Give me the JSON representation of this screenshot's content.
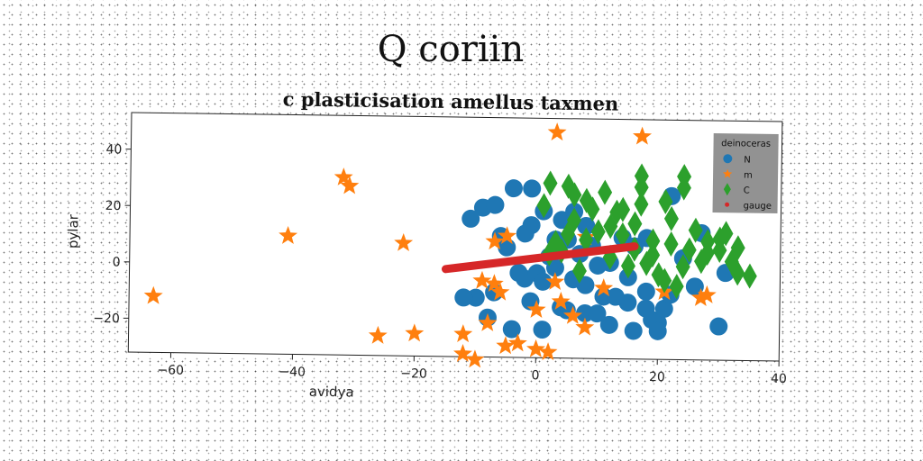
{
  "figure": {
    "title": "Q coriin",
    "subtitle": "c plasticisation amellus taxmen"
  },
  "chart_data": {
    "type": "scatter",
    "xlabel": "avidya",
    "ylabel": "pylar",
    "xlim": [
      -67,
      40
    ],
    "ylim": [
      -32,
      53
    ],
    "xticks": [
      -60,
      -40,
      -20,
      0,
      20,
      40
    ],
    "yticks": [
      -20,
      0,
      20,
      40
    ],
    "tick_labels_x": [
      "−60",
      "−40",
      "−20",
      "0",
      "20",
      "40"
    ],
    "tick_labels_y": [
      "−20",
      "0",
      "20",
      "40"
    ],
    "grid": false,
    "legend": {
      "title": "deinoceras",
      "placement": "top-right",
      "background": "#8c8c8c",
      "entries": [
        "N",
        "m",
        "C",
        "gauge"
      ]
    },
    "series": [
      {
        "name": "N",
        "marker": "circle",
        "color": "#1f77b4",
        "points": [
          [
            -11,
            17
          ],
          [
            -9,
            21
          ],
          [
            -7,
            22
          ],
          [
            -4,
            28
          ],
          [
            -1,
            28
          ],
          [
            1,
            20
          ],
          [
            4,
            17
          ],
          [
            3,
            10
          ],
          [
            -1,
            15
          ],
          [
            -2,
            12
          ],
          [
            6,
            20
          ],
          [
            8,
            15
          ],
          [
            5,
            10
          ],
          [
            7,
            5
          ],
          [
            3,
            0
          ],
          [
            0,
            -2
          ],
          [
            -2,
            -4
          ],
          [
            1,
            -5
          ],
          [
            6,
            -4
          ],
          [
            8,
            -6
          ],
          [
            11,
            -10
          ],
          [
            15,
            -12
          ],
          [
            -7,
            -9
          ],
          [
            -10,
            -11
          ],
          [
            -12,
            -11
          ],
          [
            -8,
            -18
          ],
          [
            -4,
            -22
          ],
          [
            1,
            -22
          ],
          [
            5,
            -15
          ],
          [
            8,
            -16
          ],
          [
            10,
            -16
          ],
          [
            12,
            -20
          ],
          [
            16,
            -22
          ],
          [
            18,
            -14
          ],
          [
            19,
            -18
          ],
          [
            20,
            -19
          ],
          [
            20,
            -22
          ],
          [
            21,
            -14
          ],
          [
            22,
            -9
          ],
          [
            26,
            -6
          ],
          [
            30,
            -20
          ],
          [
            31,
            -1
          ],
          [
            27,
            13
          ],
          [
            22,
            26
          ],
          [
            18,
            11
          ],
          [
            14,
            11
          ],
          [
            16,
            8
          ],
          [
            12,
            2
          ],
          [
            15,
            -3
          ],
          [
            -5,
            7
          ],
          [
            -3,
            -2
          ],
          [
            2,
            4
          ],
          [
            9,
            8
          ],
          [
            10,
            1
          ],
          [
            -6,
            11
          ],
          [
            24,
            4
          ],
          [
            18,
            -8
          ],
          [
            4,
            -14
          ],
          [
            13,
            -10
          ],
          [
            -1,
            -12
          ]
        ]
      },
      {
        "name": "m",
        "marker": "star",
        "color": "#ff7f0e",
        "points": [
          [
            -63,
            -12
          ],
          [
            -41,
            10
          ],
          [
            -32,
            31
          ],
          [
            -31,
            28
          ],
          [
            -22,
            8
          ],
          [
            -26,
            -25
          ],
          [
            -20,
            -24
          ],
          [
            -12,
            -31
          ],
          [
            -12,
            -24
          ],
          [
            -10,
            -33
          ],
          [
            -8,
            -20
          ],
          [
            -7,
            -6
          ],
          [
            -6,
            -9
          ],
          [
            -5,
            -28
          ],
          [
            -3,
            -27
          ],
          [
            0,
            -29
          ],
          [
            3,
            -5
          ],
          [
            4,
            -12
          ],
          [
            6,
            -17
          ],
          [
            8,
            -21
          ],
          [
            11,
            -7
          ],
          [
            8,
            11
          ],
          [
            -5,
            11
          ],
          [
            -7,
            9
          ],
          [
            3,
            48
          ],
          [
            17,
            47
          ],
          [
            21,
            -8
          ],
          [
            27,
            -10
          ],
          [
            28,
            -9
          ],
          [
            2,
            -30
          ],
          [
            -9,
            -5
          ],
          [
            0,
            -15
          ]
        ]
      },
      {
        "name": "C",
        "marker": "diamond",
        "color": "#2ca02c",
        "points": [
          [
            2,
            30
          ],
          [
            5,
            29
          ],
          [
            6,
            26
          ],
          [
            8,
            24
          ],
          [
            11,
            27
          ],
          [
            14,
            21
          ],
          [
            17,
            29
          ],
          [
            17,
            23
          ],
          [
            21,
            24
          ],
          [
            24,
            33
          ],
          [
            24,
            29
          ],
          [
            22,
            18
          ],
          [
            26,
            14
          ],
          [
            28,
            10
          ],
          [
            30,
            7
          ],
          [
            32,
            3
          ],
          [
            35,
            -2
          ],
          [
            33,
            -1
          ],
          [
            24,
            1
          ],
          [
            21,
            -4
          ],
          [
            20,
            -2
          ],
          [
            18,
            2
          ],
          [
            16,
            7
          ],
          [
            14,
            12
          ],
          [
            12,
            15
          ],
          [
            10,
            13
          ],
          [
            8,
            10
          ],
          [
            5,
            12
          ],
          [
            3,
            9
          ],
          [
            2,
            5
          ],
          [
            4,
            6
          ],
          [
            6,
            17
          ],
          [
            9,
            21
          ],
          [
            13,
            20
          ],
          [
            16,
            16
          ],
          [
            19,
            10
          ],
          [
            22,
            9
          ],
          [
            25,
            7
          ],
          [
            27,
            3
          ],
          [
            30,
            11
          ],
          [
            33,
            8
          ],
          [
            1,
            22
          ],
          [
            7,
            -1
          ],
          [
            12,
            4
          ],
          [
            15,
            1
          ],
          [
            19,
            5
          ],
          [
            23,
            -6
          ],
          [
            31,
            13
          ],
          [
            17,
            33
          ],
          [
            28,
            6
          ]
        ]
      }
    ],
    "line": {
      "name": "gauge",
      "color": "#d62728",
      "x": [
        -15,
        16
      ],
      "y": [
        -1,
        8
      ]
    }
  }
}
